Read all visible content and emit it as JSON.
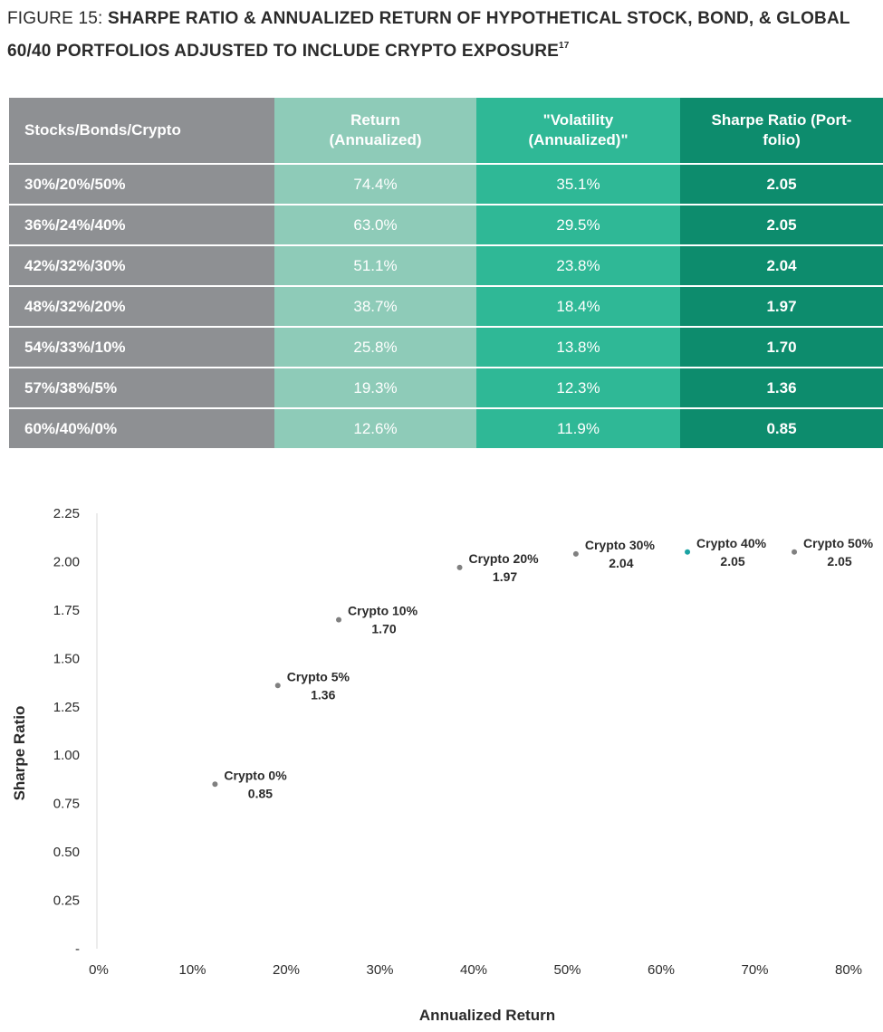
{
  "figure": {
    "prefix": "FIGURE 15: ",
    "title": "SHARPE RATIO & ANNUALIZED RETURN OF HYPOTHETICAL STOCK, BOND, & GLOBAL 60/40 PORTFOLIOS ADJUSTED TO INCLUDE CRYPTO EXPOSURE",
    "footnote": "17"
  },
  "table": {
    "headers": [
      "Stocks/Bonds/Crypto",
      "Return (Annualized)",
      "\"Volatility (Annualized)\"",
      "Sharpe Ratio (Port-folio)"
    ],
    "rows": [
      [
        "30%/20%/50%",
        "74.4%",
        "35.1%",
        "2.05"
      ],
      [
        "36%/24%/40%",
        "63.0%",
        "29.5%",
        "2.05"
      ],
      [
        "42%/32%/30%",
        "51.1%",
        "23.8%",
        "2.04"
      ],
      [
        "48%/32%/20%",
        "38.7%",
        "18.4%",
        "1.97"
      ],
      [
        "54%/33%/10%",
        "25.8%",
        "13.8%",
        "1.70"
      ],
      [
        "57%/38%/5%",
        "19.3%",
        "12.3%",
        "1.36"
      ],
      [
        "60%/40%/0%",
        "12.6%",
        "11.9%",
        "0.85"
      ]
    ],
    "colors": [
      "#8e9093",
      "#8ecbb8",
      "#2fb896",
      "#0d8c6d"
    ]
  },
  "chart_data": {
    "type": "scatter",
    "title": "",
    "xlabel": "Annualized Return",
    "ylabel": "Sharpe Ratio",
    "xlim": [
      0,
      80
    ],
    "ylim": [
      0,
      2.25
    ],
    "x_ticks": [
      "0%",
      "10%",
      "20%",
      "30%",
      "40%",
      "50%",
      "60%",
      "70%",
      "80%"
    ],
    "y_ticks": [
      "-",
      "0.25",
      "0.50",
      "0.75",
      "1.00",
      "1.25",
      "1.50",
      "1.75",
      "2.00",
      "2.25"
    ],
    "grid": false,
    "points": [
      {
        "label": "Crypto 0%",
        "value_label": "0.85",
        "x": 12.6,
        "y": 0.85,
        "color": "#808080"
      },
      {
        "label": "Crypto 5%",
        "value_label": "1.36",
        "x": 19.3,
        "y": 1.36,
        "color": "#808080"
      },
      {
        "label": "Crypto 10%",
        "value_label": "1.70",
        "x": 25.8,
        "y": 1.7,
        "color": "#808080"
      },
      {
        "label": "Crypto 20%",
        "value_label": "1.97",
        "x": 38.7,
        "y": 1.97,
        "color": "#808080"
      },
      {
        "label": "Crypto 30%",
        "value_label": "2.04",
        "x": 51.1,
        "y": 2.04,
        "color": "#808080"
      },
      {
        "label": "Crypto 40%",
        "value_label": "2.05",
        "x": 63.0,
        "y": 2.05,
        "color": "#1aa3a3"
      },
      {
        "label": "Crypto 50%",
        "value_label": "2.05",
        "x": 74.4,
        "y": 2.05,
        "color": "#808080"
      }
    ]
  }
}
